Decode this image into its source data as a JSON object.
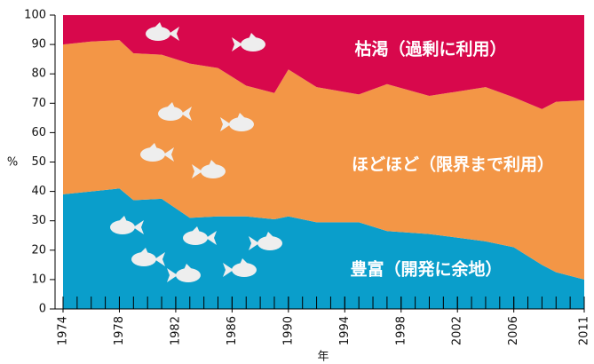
{
  "chart_data": {
    "type": "stacked_area",
    "x": [
      1974,
      1976,
      1978,
      1979,
      1981,
      1983,
      1985,
      1987,
      1989,
      1990,
      1992,
      1995,
      1997,
      2000,
      2004,
      2006,
      2008,
      2009,
      2011
    ],
    "series": [
      {
        "name": "豊富（開発に余地）",
        "color": "#0a9ecb",
        "values": [
          39,
          40,
          41,
          37,
          37.5,
          31,
          31.5,
          31.5,
          30.5,
          31.5,
          29.5,
          29.5,
          26.5,
          25.5,
          23,
          21,
          15,
          12.5,
          10
        ]
      },
      {
        "name": "ほどほど（限界まで利用）",
        "color": "#f39646",
        "values": [
          51,
          51,
          50.5,
          50,
          49,
          52.5,
          50.5,
          44.5,
          43,
          50,
          46,
          43.5,
          50,
          47,
          52.5,
          51,
          53,
          58,
          61
        ]
      },
      {
        "name": "枯渇（過剰に利用）",
        "color": "#d8084c",
        "values": [
          10,
          9,
          8.5,
          13,
          13.5,
          16.5,
          18,
          24,
          26.5,
          18.5,
          24.5,
          27,
          23.5,
          27.5,
          24.5,
          28,
          32,
          29.5,
          29
        ]
      }
    ],
    "xlim": [
      1974,
      2011
    ],
    "xticks": [
      1974,
      1978,
      1982,
      1986,
      1990,
      1994,
      1998,
      2002,
      2006,
      2011
    ],
    "ylim": [
      0,
      100
    ],
    "yticks": [
      0,
      10,
      20,
      30,
      40,
      50,
      60,
      70,
      80,
      90,
      100
    ],
    "ylabel": "%",
    "xlabel": "年"
  }
}
